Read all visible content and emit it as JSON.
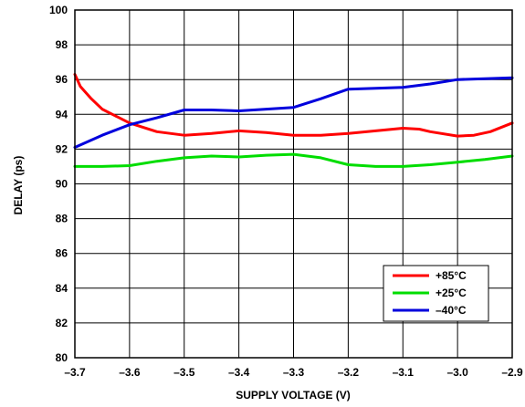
{
  "chart_data": {
    "type": "line",
    "xlabel": "SUPPLY VOLTAGE (V)",
    "ylabel": "DELAY (ps)",
    "xlim": [
      -3.7,
      -2.9
    ],
    "ylim": [
      80,
      100
    ],
    "x_ticks": [
      -3.7,
      -3.6,
      -3.5,
      -3.4,
      -3.3,
      -3.2,
      -3.1,
      -3.0,
      -2.9
    ],
    "x_tick_labels": [
      "–3.7",
      "–3.6",
      "–3.5",
      "–3.4",
      "–3.3",
      "–3.2",
      "–3.1",
      "–3.0",
      "–2.9"
    ],
    "y_ticks": [
      80,
      82,
      84,
      86,
      88,
      90,
      92,
      94,
      96,
      98,
      100
    ],
    "y_tick_labels": [
      "80",
      "82",
      "84",
      "86",
      "88",
      "90",
      "92",
      "94",
      "96",
      "98",
      "100"
    ],
    "grid": true,
    "legend_position": "bottom-right",
    "series": [
      {
        "name": "+85°C",
        "color": "#ff0000",
        "points": [
          [
            -3.7,
            96.3
          ],
          [
            -3.69,
            95.6
          ],
          [
            -3.67,
            94.9
          ],
          [
            -3.65,
            94.3
          ],
          [
            -3.6,
            93.5
          ],
          [
            -3.55,
            93.0
          ],
          [
            -3.5,
            92.8
          ],
          [
            -3.45,
            92.9
          ],
          [
            -3.4,
            93.05
          ],
          [
            -3.35,
            92.95
          ],
          [
            -3.3,
            92.8
          ],
          [
            -3.25,
            92.8
          ],
          [
            -3.2,
            92.9
          ],
          [
            -3.15,
            93.05
          ],
          [
            -3.1,
            93.2
          ],
          [
            -3.07,
            93.15
          ],
          [
            -3.05,
            93.0
          ],
          [
            -3.0,
            92.75
          ],
          [
            -2.97,
            92.8
          ],
          [
            -2.94,
            93.0
          ],
          [
            -2.9,
            93.5
          ]
        ]
      },
      {
        "name": "+25°C",
        "color": "#00dd00",
        "points": [
          [
            -3.7,
            91.0
          ],
          [
            -3.65,
            91.0
          ],
          [
            -3.6,
            91.05
          ],
          [
            -3.55,
            91.3
          ],
          [
            -3.5,
            91.5
          ],
          [
            -3.45,
            91.6
          ],
          [
            -3.4,
            91.55
          ],
          [
            -3.35,
            91.65
          ],
          [
            -3.3,
            91.7
          ],
          [
            -3.25,
            91.5
          ],
          [
            -3.2,
            91.1
          ],
          [
            -3.15,
            91.0
          ],
          [
            -3.1,
            91.0
          ],
          [
            -3.05,
            91.1
          ],
          [
            -3.0,
            91.25
          ],
          [
            -2.95,
            91.4
          ],
          [
            -2.9,
            91.6
          ]
        ]
      },
      {
        "name": "–40°C",
        "color": "#0000dd",
        "points": [
          [
            -3.7,
            92.1
          ],
          [
            -3.65,
            92.8
          ],
          [
            -3.6,
            93.4
          ],
          [
            -3.55,
            93.8
          ],
          [
            -3.5,
            94.25
          ],
          [
            -3.45,
            94.25
          ],
          [
            -3.4,
            94.2
          ],
          [
            -3.35,
            94.3
          ],
          [
            -3.3,
            94.4
          ],
          [
            -3.25,
            94.9
          ],
          [
            -3.2,
            95.45
          ],
          [
            -3.15,
            95.5
          ],
          [
            -3.1,
            95.55
          ],
          [
            -3.05,
            95.75
          ],
          [
            -3.0,
            96.0
          ],
          [
            -2.95,
            96.05
          ],
          [
            -2.9,
            96.1
          ]
        ]
      }
    ]
  }
}
